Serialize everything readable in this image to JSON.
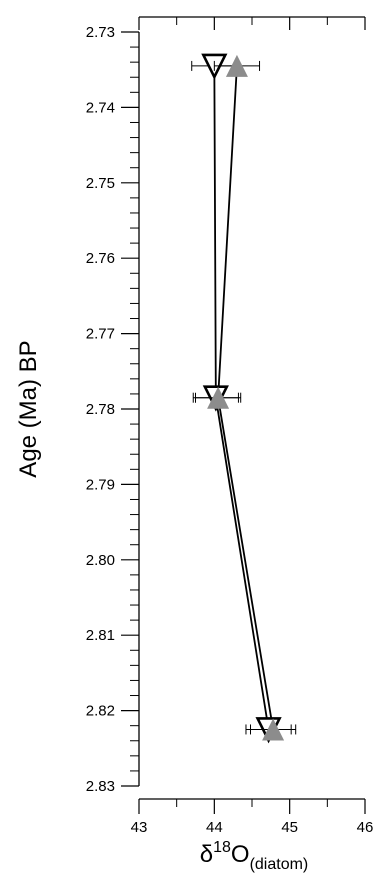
{
  "chart_data": {
    "type": "scatter",
    "title": "",
    "xlabel": "δ18O(diatom)",
    "xlabel_parts": {
      "prefix": "δ",
      "sup": "18",
      "main": "O",
      "sub": "(diatom)"
    },
    "ylabel": "Age (Ma) BP",
    "xlim": [
      43,
      46
    ],
    "ylim": [
      2.73,
      2.83
    ],
    "y_inverted": true,
    "x_ticks": [
      "43",
      "44",
      "45",
      "46"
    ],
    "y_ticks": [
      "2.73",
      "2.74",
      "2.75",
      "2.76",
      "2.77",
      "2.78",
      "2.79",
      "2.80",
      "2.81",
      "2.82",
      "2.83"
    ],
    "grid": false,
    "legend": "none",
    "series": [
      {
        "marker": "triangle-down-open",
        "color": "#000000",
        "points": [
          {
            "x": 44.0,
            "y": 2.7345,
            "xerr": 0.3
          },
          {
            "x": 44.02,
            "y": 2.7785,
            "xerr": 0.3
          },
          {
            "x": 44.72,
            "y": 2.8225,
            "xerr": 0.3
          }
        ]
      },
      {
        "marker": "triangle-up-filled",
        "color": "#8c8c8c",
        "points": [
          {
            "x": 44.3,
            "y": 2.7345,
            "xerr": 0.3
          },
          {
            "x": 44.05,
            "y": 2.7785,
            "xerr": 0.3
          },
          {
            "x": 44.78,
            "y": 2.8225,
            "xerr": 0.3
          }
        ]
      }
    ]
  }
}
